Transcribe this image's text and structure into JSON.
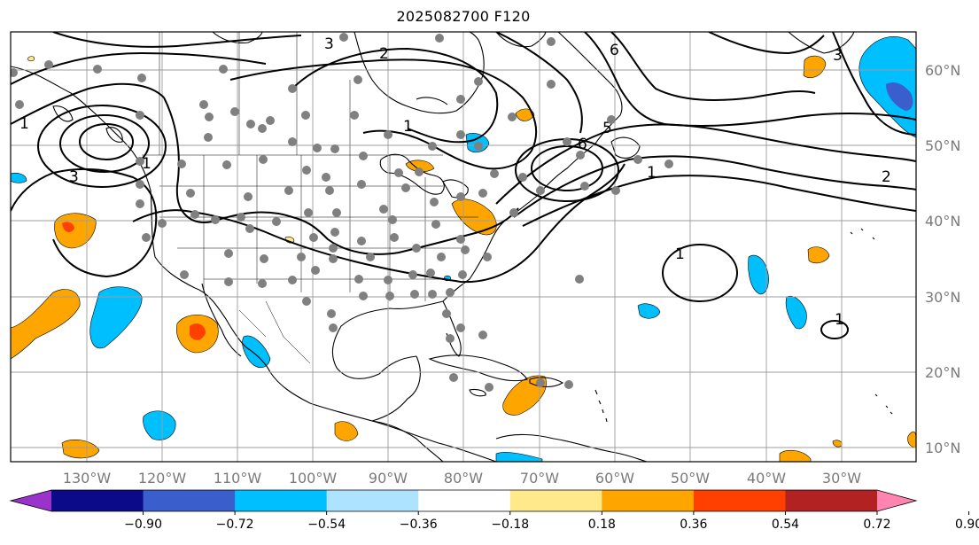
{
  "title": "2025082700 F120",
  "lon_labels": [
    "130°W",
    "120°W",
    "110°W",
    "100°W",
    "90°W",
    "80°W",
    "70°W",
    "60°W",
    "50°W",
    "40°W",
    "30°W"
  ],
  "lat_labels": [
    "60°N",
    "50°N",
    "40°N",
    "30°N",
    "20°N",
    "10°N"
  ],
  "colorbar": {
    "colors": [
      "#9933cc",
      "#0b0b8a",
      "#3a5fcd",
      "#00bfff",
      "#aee3ff",
      "#ffffff",
      "#ffe98a",
      "#ffa500",
      "#ff4000",
      "#b22222",
      "#ff85b0"
    ],
    "labels": [
      "−0.90",
      "−0.72",
      "−0.54",
      "−0.36",
      "−0.18",
      "0.18",
      "0.36",
      "0.54",
      "0.72",
      "0.90"
    ]
  },
  "contour_labels": [
    "3",
    "2",
    "6",
    "1",
    "3",
    "1",
    "3",
    "1",
    "5",
    "6",
    "1",
    "2",
    "1",
    "1"
  ],
  "colors": {
    "land_outline": "#000000",
    "grid": "#9e9e9e",
    "station": "#808080"
  }
}
